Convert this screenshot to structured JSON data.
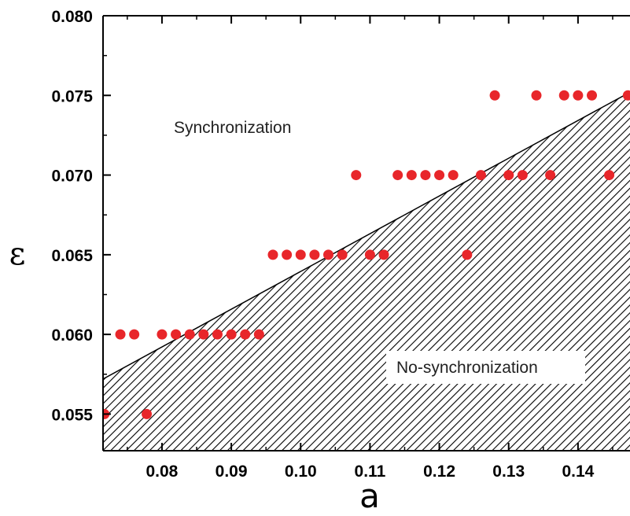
{
  "chart_data": {
    "type": "scatter",
    "xlabel": "a",
    "ylabel": "ε",
    "xlim": [
      0.0715,
      0.1475
    ],
    "ylim": [
      0.0527,
      0.08
    ],
    "x_ticks": [
      0.08,
      0.09,
      0.1,
      0.11,
      0.12,
      0.13,
      0.14
    ],
    "x_tick_labels": [
      "0.08",
      "0.09",
      "0.10",
      "0.11",
      "0.12",
      "0.13",
      "0.14"
    ],
    "y_ticks": [
      0.055,
      0.06,
      0.065,
      0.07,
      0.075,
      0.08
    ],
    "y_tick_labels": [
      "0.055",
      "0.060",
      "0.065",
      "0.070",
      "0.075",
      "0.080"
    ],
    "grid": false,
    "boundary_line": [
      [
        0.0715,
        0.0572
      ],
      [
        0.1475,
        0.0752
      ]
    ],
    "annotations": [
      "Synchronization",
      "No-synchronization"
    ],
    "marker_color": "#e8262a",
    "hatch_color": "#000000",
    "series": [
      {
        "points": [
          [
            0.0717,
            0.055
          ],
          [
            0.0778,
            0.055
          ],
          [
            0.074,
            0.06
          ],
          [
            0.076,
            0.06
          ],
          [
            0.08,
            0.06
          ],
          [
            0.082,
            0.06
          ],
          [
            0.084,
            0.06
          ],
          [
            0.086,
            0.06
          ],
          [
            0.088,
            0.06
          ],
          [
            0.09,
            0.06
          ],
          [
            0.092,
            0.06
          ],
          [
            0.094,
            0.06
          ],
          [
            0.096,
            0.065
          ],
          [
            0.098,
            0.065
          ],
          [
            0.1,
            0.065
          ],
          [
            0.102,
            0.065
          ],
          [
            0.104,
            0.065
          ],
          [
            0.106,
            0.065
          ],
          [
            0.11,
            0.065
          ],
          [
            0.112,
            0.065
          ],
          [
            0.124,
            0.065
          ],
          [
            0.108,
            0.07
          ],
          [
            0.114,
            0.07
          ],
          [
            0.116,
            0.07
          ],
          [
            0.118,
            0.07
          ],
          [
            0.12,
            0.07
          ],
          [
            0.122,
            0.07
          ],
          [
            0.126,
            0.07
          ],
          [
            0.13,
            0.07
          ],
          [
            0.132,
            0.07
          ],
          [
            0.136,
            0.07
          ],
          [
            0.1445,
            0.07
          ],
          [
            0.128,
            0.075
          ],
          [
            0.134,
            0.075
          ],
          [
            0.138,
            0.075
          ],
          [
            0.14,
            0.075
          ],
          [
            0.142,
            0.075
          ],
          [
            0.1472,
            0.075
          ]
        ]
      }
    ]
  }
}
